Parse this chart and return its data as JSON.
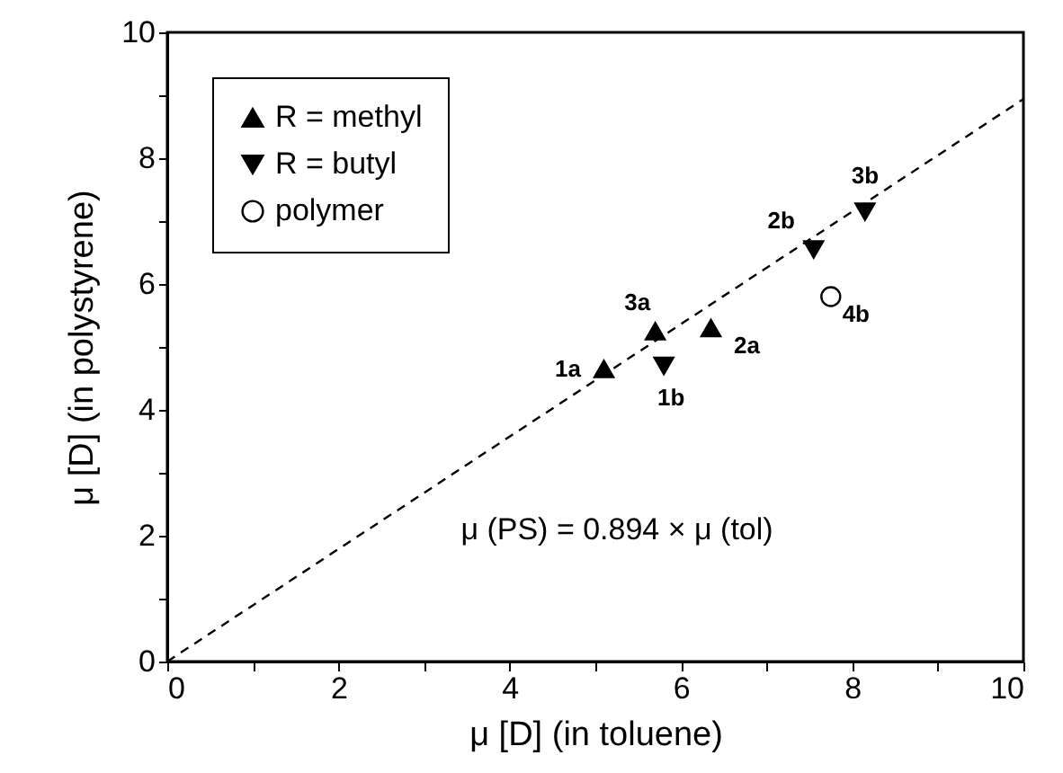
{
  "chart_data": {
    "type": "scatter",
    "xlabel": "μ [D]   (in toluene)",
    "ylabel": "μ [D]   (in polystyrene)",
    "series": [
      {
        "name": "R = methyl",
        "color": "#000000",
        "marker": "triangle",
        "x": [
          5.1,
          5.7,
          6.35
        ],
        "values": [
          4.65,
          5.25,
          5.3
        ]
      },
      {
        "name": "R = butyl",
        "color": "#000000",
        "marker": "triangle-down",
        "x": [
          5.8,
          7.55,
          8.15
        ],
        "values": [
          4.7,
          6.55,
          7.15
        ]
      },
      {
        "name": "polymer",
        "color": "#000000",
        "marker": "circle",
        "x": [
          7.75
        ],
        "values": [
          5.8
        ]
      },
      {
        "type": "line",
        "color": "#000000",
        "line_style": "dashed",
        "x": [
          0,
          10
        ],
        "values": [
          0,
          8.94
        ]
      }
    ],
    "annotations": [
      {
        "text": "1a",
        "x": 5.1,
        "y": 4.65
      },
      {
        "text": "3a",
        "x": 5.7,
        "y": 5.25
      },
      {
        "text": "1b",
        "x": 5.8,
        "y": 4.7
      },
      {
        "text": "2a",
        "x": 6.35,
        "y": 5.3
      },
      {
        "text": "2b",
        "x": 7.55,
        "y": 6.55
      },
      {
        "text": "3b",
        "x": 8.15,
        "y": 7.15
      },
      {
        "text": "4b",
        "x": 7.75,
        "y": 5.8
      },
      "μ (PS) = 0.894 × μ (tol)"
    ],
    "xlim": [
      0,
      10
    ],
    "ylim": [
      0,
      10
    ],
    "xticks": [
      0,
      {
        "value": 1,
        "label": null
      },
      2,
      {
        "value": 3,
        "label": null
      },
      4,
      {
        "value": 5,
        "label": null
      },
      6,
      {
        "value": 7,
        "label": null
      },
      8,
      {
        "value": 9,
        "label": null
      },
      10
    ],
    "yticks": [
      0,
      {
        "value": 1,
        "label": null
      },
      2,
      {
        "value": 3,
        "label": null
      },
      4,
      {
        "value": 5,
        "label": null
      },
      6,
      {
        "value": 7,
        "label": null
      },
      8,
      {
        "value": 9,
        "label": null
      },
      10
    ],
    "legend": "top left",
    "grid": false
  }
}
